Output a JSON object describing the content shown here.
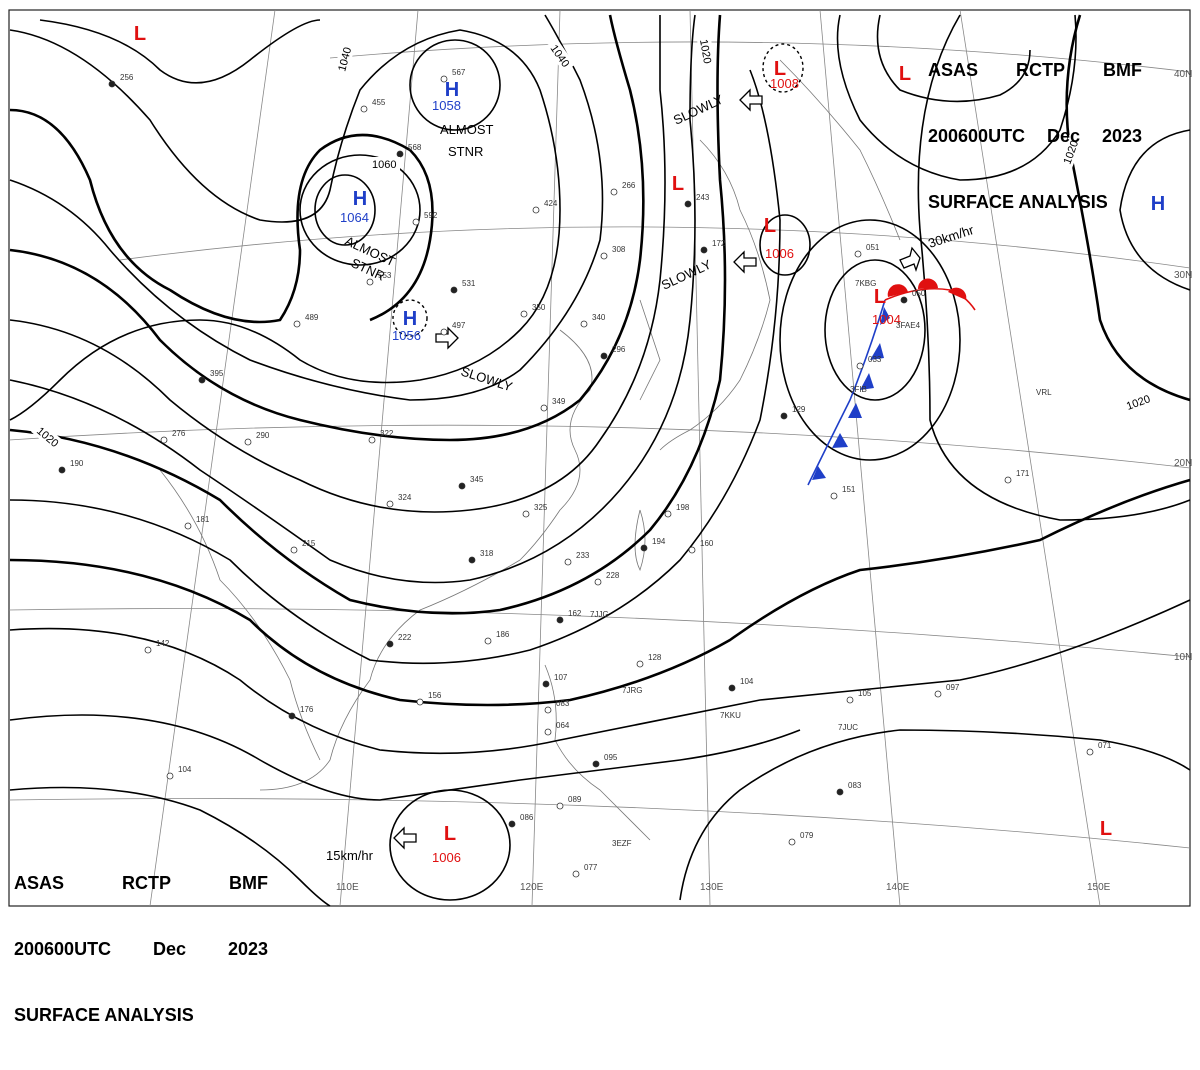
{
  "chart_header": {
    "line1": [
      "ASAS",
      "RCTP",
      "BMF"
    ],
    "line2": [
      "200600UTC",
      "Dec",
      "2023"
    ],
    "line3": "SURFACE ANALYSIS"
  },
  "latitude_labels": [
    "40N",
    "30N",
    "20N",
    "10N"
  ],
  "longitude_labels": [
    "110E",
    "120E",
    "130E",
    "140E",
    "150E"
  ],
  "isobar_labels": [
    "1040",
    "1040",
    "1020",
    "1060",
    "1020",
    "1020",
    "1020"
  ],
  "pressure_centers": [
    {
      "symbol": "H",
      "value": "1058",
      "color": "#1f3fc8"
    },
    {
      "symbol": "H",
      "value": "1064",
      "color": "#1f3fc8"
    },
    {
      "symbol": "H",
      "value": "1056",
      "color": "#1f3fc8"
    },
    {
      "symbol": "H",
      "value": "",
      "color": "#1f3fc8"
    },
    {
      "symbol": "L",
      "value": "1008",
      "color": "#e01010"
    },
    {
      "symbol": "L",
      "value": "1006",
      "color": "#e01010"
    },
    {
      "symbol": "L",
      "value": "1004",
      "color": "#e01010"
    },
    {
      "symbol": "L",
      "value": "1006",
      "color": "#e01010"
    },
    {
      "symbol": "L",
      "value": "",
      "color": "#e01010"
    },
    {
      "symbol": "L",
      "value": "",
      "color": "#e01010"
    },
    {
      "symbol": "L",
      "value": "",
      "color": "#e01010"
    },
    {
      "symbol": "L",
      "value": "",
      "color": "#e01010"
    }
  ],
  "movement_labels": [
    "ALMOST",
    "STNR",
    "ALMOST",
    "STNR",
    "SLOWLY",
    "SLOWLY",
    "SLOWLY",
    "30km/hr",
    "15km/hr"
  ],
  "station_ids": [
    "7KBG",
    "3FAE4",
    "3FIB",
    "7JJG",
    "7JRG",
    "7KKU",
    "7JUC",
    "3EZF",
    "VRL"
  ],
  "station_values": [
    "256",
    "567",
    "455",
    "568",
    "592",
    "553",
    "531",
    "497",
    "489",
    "395",
    "276",
    "290",
    "190",
    "181",
    "322",
    "345",
    "324",
    "325",
    "318",
    "215",
    "266",
    "243",
    "424",
    "308",
    "172",
    "350",
    "340",
    "296",
    "349",
    "198",
    "194",
    "233",
    "228",
    "162",
    "186",
    "160",
    "129",
    "151",
    "051",
    "050",
    "033",
    "171",
    "107",
    "083",
    "064",
    "095",
    "089",
    "128",
    "104",
    "105",
    "097",
    "083",
    "079",
    "071",
    "086",
    "077",
    "142",
    "222",
    "156",
    "104",
    "176"
  ],
  "colors": {
    "front_cold": "#1f3fc8",
    "front_warm": "#e01010",
    "low": "#e01010",
    "high": "#1f3fc8"
  }
}
